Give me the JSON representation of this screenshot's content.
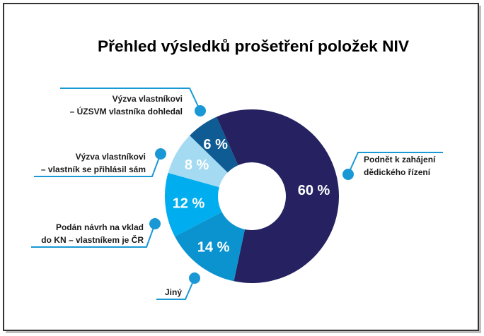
{
  "chart_data": {
    "type": "pie",
    "donut": true,
    "title": "Přehled výsledků prošetření položek NIV",
    "slices": [
      {
        "label": [
          "Podnět k zahájení",
          "dědického řízení"
        ],
        "value": 60,
        "value_label": "60 %",
        "color": "#262262"
      },
      {
        "label": [
          "Jiný"
        ],
        "value": 14,
        "value_label": "14 %",
        "color": "#0b93cf"
      },
      {
        "label": [
          "Podán návrh na vklad",
          "do KN – vlastníkem je ČR"
        ],
        "value": 12,
        "value_label": "12 %",
        "color": "#00aeef"
      },
      {
        "label": [
          "Výzva vlastníkovi",
          "– vlastník se přihlásil sám"
        ],
        "value": 8,
        "value_label": "8 %",
        "color": "#a5dbf2"
      },
      {
        "label": [
          "Výzva vlastníkovi",
          "– ÚZSVM vlastníka dohledal"
        ],
        "value": 6,
        "value_label": "6 %",
        "color": "#0f5b93"
      }
    ],
    "connector_color": "#1a98d5"
  }
}
